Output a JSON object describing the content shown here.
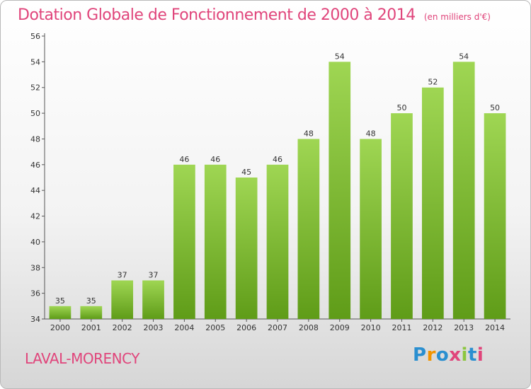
{
  "title": "Dotation Globale de Fonctionnement de 2000 à 2014",
  "subtitle": "(en milliers d'€)",
  "location": "LAVAL-MORENCY",
  "logo": {
    "text": "Proxiti",
    "letters": [
      "P",
      "r",
      "o",
      "x",
      "i",
      "t",
      "i"
    ],
    "colors": [
      "#2a8fd0",
      "#f29400",
      "#2a8fd0",
      "#e0457b",
      "#8cc63f",
      "#2a8fd0",
      "#e0457b"
    ]
  },
  "colors": {
    "title": "#e0457b",
    "bar_light": "#9fd653",
    "bar_dark": "#5f9c18"
  },
  "chart_data": {
    "type": "bar",
    "categories": [
      "2000",
      "2001",
      "2002",
      "2003",
      "2004",
      "2005",
      "2006",
      "2007",
      "2008",
      "2009",
      "2010",
      "2011",
      "2012",
      "2013",
      "2014"
    ],
    "values": [
      35,
      35,
      37,
      37,
      46,
      46,
      45,
      46,
      48,
      54,
      48,
      50,
      52,
      54,
      50
    ],
    "ylim": [
      34,
      56
    ],
    "yticks": [
      "34",
      "36",
      "38",
      "40",
      "42",
      "44",
      "46",
      "48",
      "50",
      "52",
      "54",
      "56"
    ],
    "grid": false,
    "xlabel": "",
    "ylabel": ""
  }
}
